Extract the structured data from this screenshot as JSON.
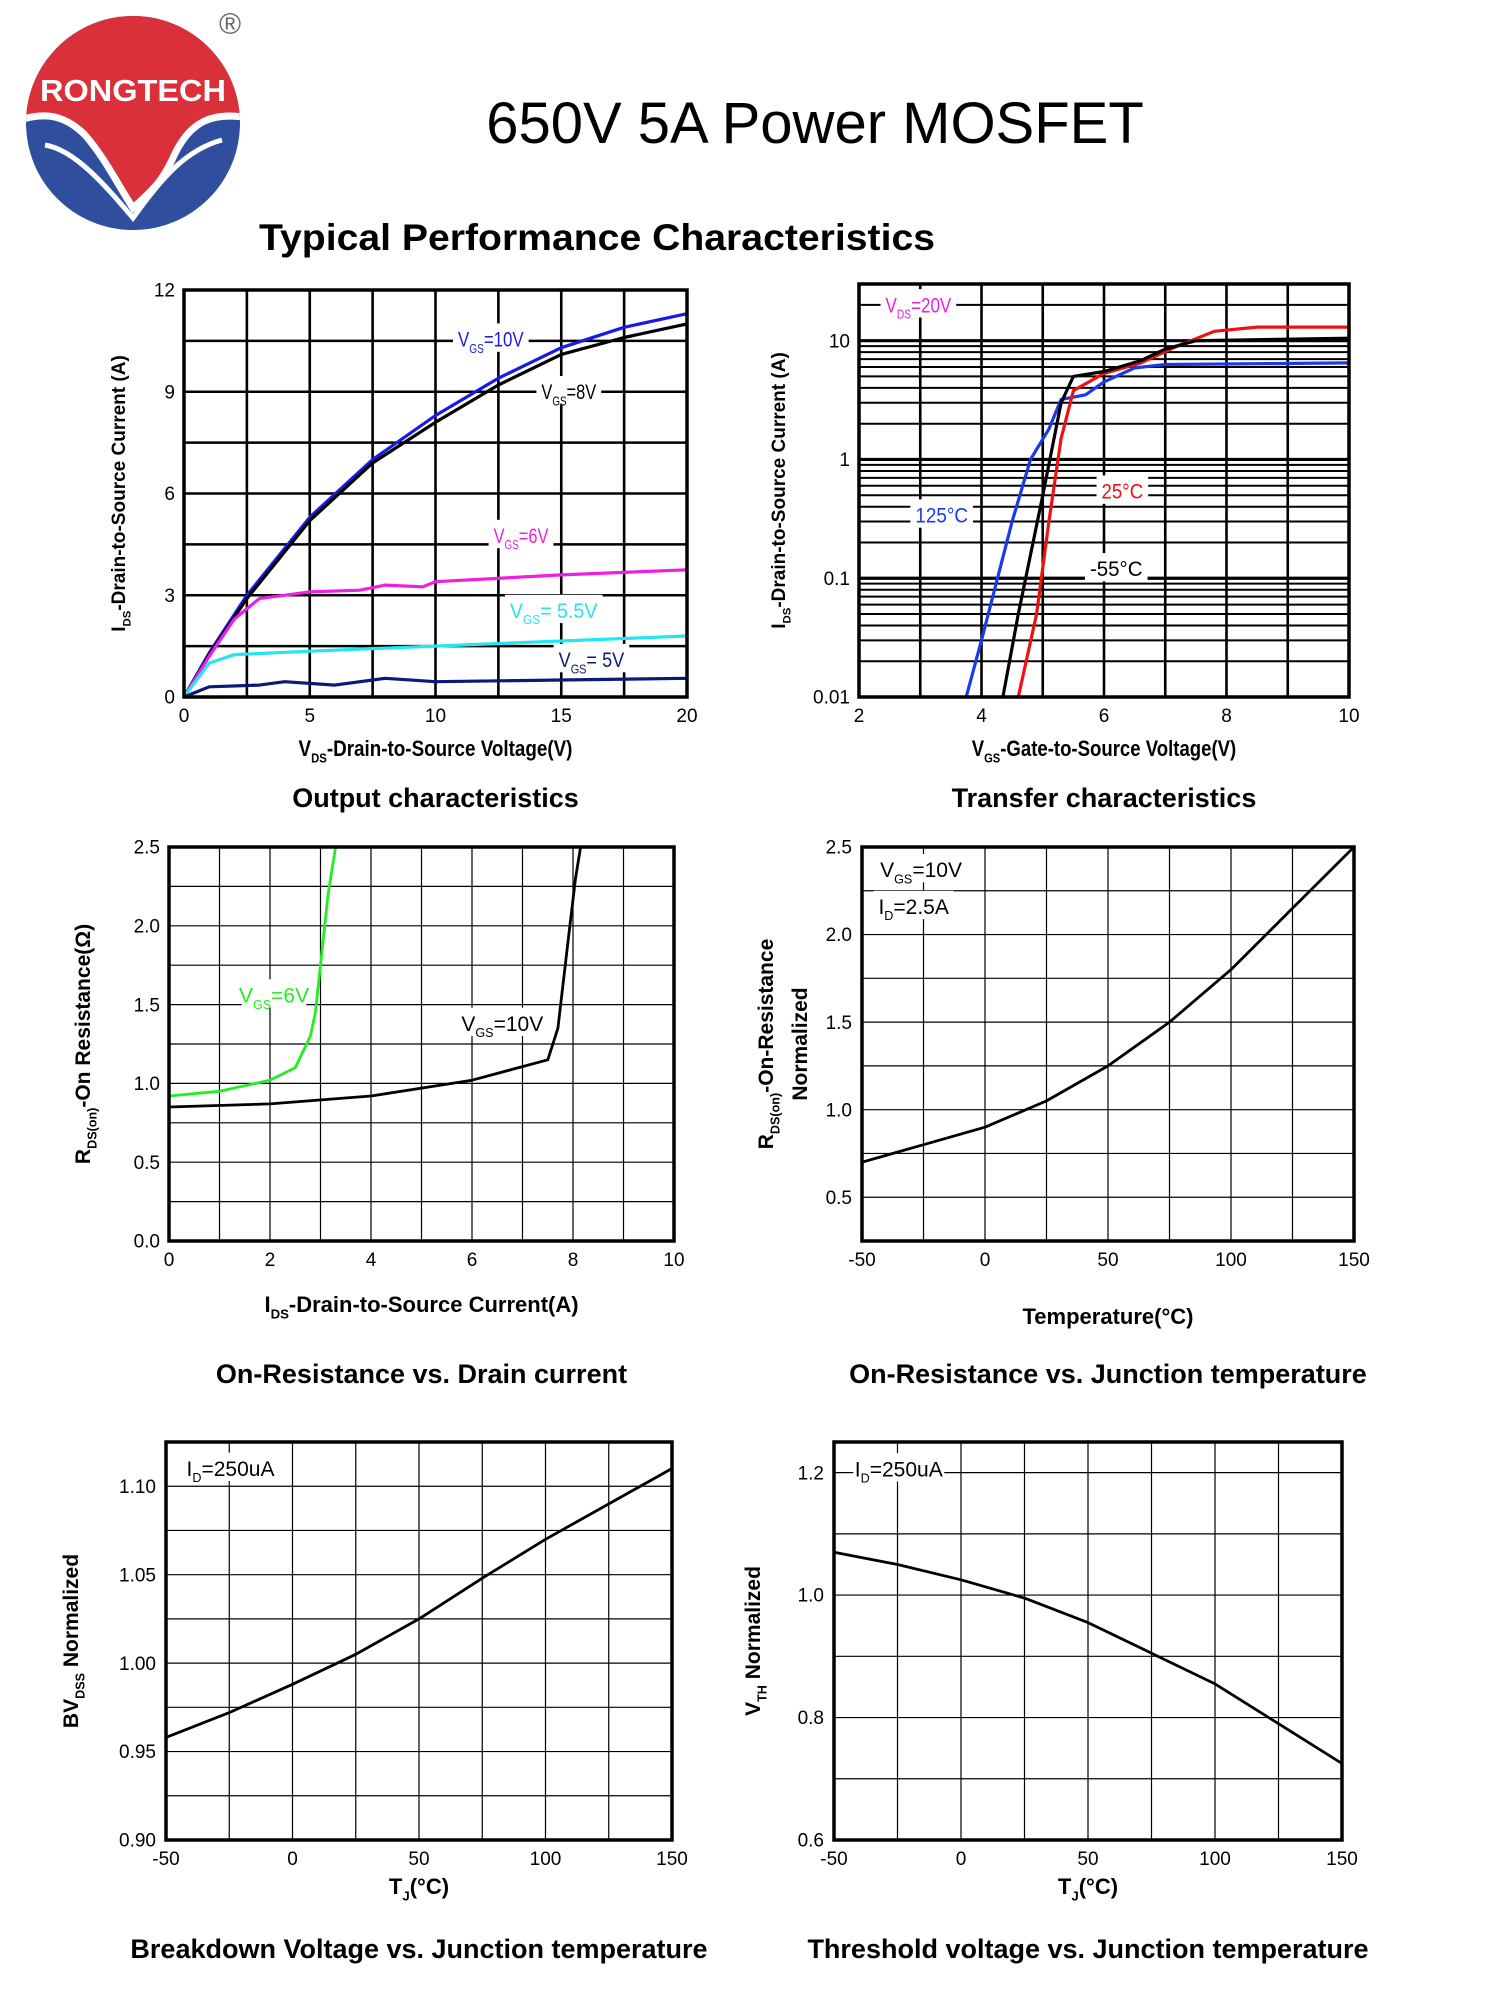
{
  "header": {
    "brand": "RONGTECH",
    "registered": "®",
    "title": "650V 5A Power MOSFET",
    "subtitle": "Typical Performance Characteristics"
  },
  "colors": {
    "logo_red": "#d9303a",
    "logo_blue": "#2f4f9e",
    "blue": "#1a1ae6",
    "black": "#000000",
    "magenta": "#ee1fe0",
    "cyan": "#22e6f0",
    "navy": "#0b1a78",
    "red": "#ee1111",
    "green": "#22ee22"
  },
  "chart_data": [
    {
      "type": "line",
      "title": "Output characteristics",
      "xlabel": {
        "t": "V",
        "s": "DS",
        "r": "-Drain-to-Source Voltage(V)"
      },
      "ylabel": {
        "t": "I",
        "s": "DS",
        "r": "-Drain-to-Source Current (A)"
      },
      "xlim": [
        0,
        20
      ],
      "ylim": [
        0,
        12
      ],
      "yscale": "linear",
      "grid": true,
      "xticks": [
        "0",
        "5",
        "10",
        "15",
        "20"
      ],
      "yticks": [
        "0",
        "3",
        "6",
        "9",
        "12"
      ],
      "series": [
        {
          "label": {
            "t": "V",
            "s": "GS",
            "r": "=10V"
          },
          "color": "#1a1ae6",
          "x": [
            0,
            1,
            2.5,
            5,
            7.5,
            10,
            12.5,
            15,
            17.5,
            20
          ],
          "y": [
            0,
            1.3,
            3.0,
            5.3,
            7.0,
            8.3,
            9.4,
            10.3,
            10.9,
            11.3
          ]
        },
        {
          "label": {
            "t": "V",
            "s": "GS",
            "r": "=8V"
          },
          "color": "#000000",
          "x": [
            0,
            1,
            2.5,
            5,
            7.5,
            10,
            12.5,
            15,
            17.5,
            20
          ],
          "y": [
            0,
            1.25,
            2.9,
            5.2,
            6.9,
            8.1,
            9.2,
            10.1,
            10.6,
            11.0
          ]
        },
        {
          "label": {
            "t": "V",
            "s": "GS",
            "r": "=6V"
          },
          "color": "#ee1fe0",
          "x": [
            0,
            1,
            2,
            3,
            5,
            7,
            8,
            9.5,
            10,
            15,
            20
          ],
          "y": [
            0,
            1.2,
            2.3,
            2.9,
            3.1,
            3.15,
            3.3,
            3.25,
            3.4,
            3.6,
            3.75
          ]
        },
        {
          "label": {
            "t": "V",
            "s": "GS",
            "r": "= 5.5V"
          },
          "color": "#22e6f0",
          "x": [
            0,
            1,
            2,
            5,
            10,
            15,
            20
          ],
          "y": [
            0,
            1.0,
            1.25,
            1.35,
            1.5,
            1.65,
            1.8
          ]
        },
        {
          "label": {
            "t": "V",
            "s": "GS",
            "r": "= 5V"
          },
          "color": "#0b1a78",
          "x": [
            0,
            1,
            3,
            4,
            6,
            8,
            10,
            15,
            20
          ],
          "y": [
            0,
            0.3,
            0.35,
            0.45,
            0.35,
            0.55,
            0.45,
            0.5,
            0.55
          ]
        }
      ]
    },
    {
      "type": "line",
      "title": "Transfer characteristics",
      "xlabel": {
        "t": "V",
        "s": "GS",
        "r": "-Gate-to-Source Voltage(V)"
      },
      "ylabel": {
        "t": "I",
        "s": "DS",
        "r": "-Drain-to-Source Current (A)"
      },
      "xlim": [
        2,
        10
      ],
      "ylim": [
        0.01,
        30
      ],
      "yscale": "log",
      "grid": true,
      "xticks": [
        "2",
        "4",
        "6",
        "8",
        "10"
      ],
      "yticks": [
        "0.01",
        "0.1",
        "1",
        "10"
      ],
      "annotations": [
        {
          "t": "V",
          "s": "DS",
          "r": "=20V"
        }
      ],
      "series": [
        {
          "label": {
            "r": "125°C"
          },
          "color": "#1a3ae6",
          "x": [
            3.75,
            4,
            4.5,
            4.8,
            5.1,
            5.3,
            5.7,
            6,
            6.5,
            7,
            10
          ],
          "y": [
            0.01,
            0.03,
            0.3,
            1,
            1.8,
            3.2,
            3.5,
            4.5,
            5.9,
            6.3,
            6.5
          ]
        },
        {
          "label": {
            "r": "25°C"
          },
          "color": "#ee1111",
          "x": [
            4.6,
            4.9,
            5.1,
            5.3,
            5.5,
            6,
            6.6,
            7.2,
            7.8,
            8.5,
            10
          ],
          "y": [
            0.01,
            0.05,
            0.3,
            1.5,
            3.8,
            5.3,
            6.5,
            9,
            12,
            13,
            13
          ]
        },
        {
          "label": {
            "r": "-55°C"
          },
          "color": "#000000",
          "x": [
            4.35,
            4.6,
            5,
            5.3,
            5.5,
            6,
            6.6,
            7,
            7.5,
            10
          ],
          "y": [
            0.01,
            0.05,
            0.5,
            3,
            5,
            5.5,
            6.8,
            8.5,
            10,
            10.5
          ]
        }
      ]
    },
    {
      "type": "line",
      "title": "On-Resistance vs. Drain current",
      "xlabel": {
        "t": "I",
        "s": "DS",
        "r": "-Drain-to-Source Current(A)"
      },
      "ylabel": {
        "t": "R",
        "s": "DS(on)",
        "r": "-On Resistance(Ω)"
      },
      "xlim": [
        0,
        10
      ],
      "ylim": [
        0,
        2.5
      ],
      "yscale": "linear",
      "grid": true,
      "xticks": [
        "0",
        "2",
        "4",
        "6",
        "8",
        "10"
      ],
      "yticks": [
        "0.0",
        "0.5",
        "1.0",
        "1.5",
        "2.0",
        "2.5"
      ],
      "series": [
        {
          "label": {
            "t": "V",
            "s": "GS",
            "r": "=6V"
          },
          "color": "#22ee22",
          "x": [
            0,
            1,
            2,
            2.5,
            2.8,
            2.9,
            3.0,
            3.15,
            3.3
          ],
          "y": [
            0.92,
            0.95,
            1.02,
            1.1,
            1.3,
            1.45,
            1.75,
            2.2,
            2.5
          ]
        },
        {
          "label": {
            "t": "V",
            "s": "GS",
            "r": "=10V"
          },
          "color": "#000000",
          "x": [
            0,
            2,
            4,
            6,
            7.5,
            7.7,
            7.9,
            8.05,
            8.15
          ],
          "y": [
            0.85,
            0.87,
            0.92,
            1.02,
            1.15,
            1.35,
            1.9,
            2.3,
            2.5
          ]
        }
      ]
    },
    {
      "type": "line",
      "title": "On-Resistance vs. Junction temperature",
      "xlabel": {
        "r": "Temperature(°C)"
      },
      "ylabel": {
        "t": "R",
        "s": "DS(on)",
        "r": "-On-Resistance"
      },
      "ylabel2": {
        "r": "Normalized"
      },
      "xlim": [
        -50,
        150
      ],
      "ylim": [
        0.25,
        2.5
      ],
      "yscale": "linear",
      "grid": true,
      "xticks": [
        "-50",
        "0",
        "50",
        "100",
        "150"
      ],
      "yticks": [
        "0.5",
        "1.0",
        "1.5",
        "2.0",
        "2.5"
      ],
      "annotations": [
        {
          "t": "V",
          "s": "GS",
          "r": "=10V"
        },
        {
          "t": "I",
          "s": "D",
          "r": "=2.5A"
        }
      ],
      "series": [
        {
          "color": "#000000",
          "x": [
            -50,
            -25,
            0,
            25,
            50,
            75,
            100,
            125,
            150
          ],
          "y": [
            0.7,
            0.8,
            0.9,
            1.05,
            1.25,
            1.5,
            1.8,
            2.15,
            2.5
          ]
        }
      ]
    },
    {
      "type": "line",
      "title": "Breakdown Voltage vs. Junction temperature",
      "xlabel": {
        "t": "T",
        "s": "J",
        "r": "(°C)"
      },
      "ylabel": {
        "t": "BV",
        "s": "DSS",
        "r": " Normalized"
      },
      "xlim": [
        -50,
        150
      ],
      "ylim": [
        0.9,
        1.125
      ],
      "yscale": "linear",
      "grid": true,
      "xticks": [
        "-50",
        "0",
        "50",
        "100",
        "150"
      ],
      "yticks": [
        "0.90",
        "0.95",
        "1.00",
        "1.05",
        "1.10"
      ],
      "annotations": [
        {
          "t": "I",
          "s": "D",
          "r": "=250uA"
        }
      ],
      "series": [
        {
          "color": "#000000",
          "x": [
            -50,
            -25,
            0,
            25,
            50,
            75,
            100,
            125,
            150
          ],
          "y": [
            0.958,
            0.972,
            0.988,
            1.005,
            1.025,
            1.048,
            1.07,
            1.09,
            1.11
          ]
        }
      ]
    },
    {
      "type": "line",
      "title": "Threshold voltage vs. Junction temperature",
      "xlabel": {
        "t": "T",
        "s": "J",
        "r": "(°C)"
      },
      "ylabel": {
        "t": "V",
        "s": "TH",
        "r": " Normalized"
      },
      "xlim": [
        -50,
        150
      ],
      "ylim": [
        0.6,
        1.25
      ],
      "yscale": "linear",
      "grid": true,
      "xticks": [
        "-50",
        "0",
        "50",
        "100",
        "150"
      ],
      "yticks": [
        "0.6",
        "0.8",
        "1.0",
        "1.2"
      ],
      "annotations": [
        {
          "t": "I",
          "s": "D",
          "r": "=250uA"
        }
      ],
      "series": [
        {
          "color": "#000000",
          "x": [
            -50,
            -25,
            0,
            25,
            50,
            75,
            100,
            125,
            150
          ],
          "y": [
            1.07,
            1.05,
            1.025,
            0.995,
            0.955,
            0.905,
            0.855,
            0.79,
            0.725
          ]
        }
      ]
    }
  ]
}
